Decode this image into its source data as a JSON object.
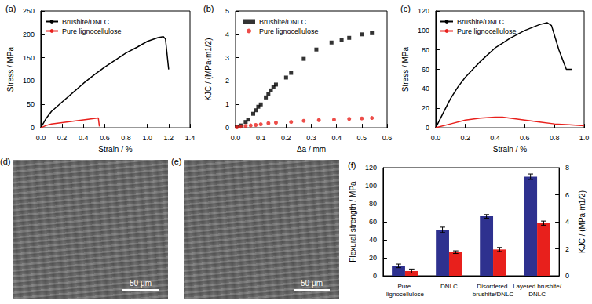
{
  "chart_data": [
    {
      "type": "line",
      "title": "(a)",
      "xlabel": "Strain / %",
      "ylabel": "Stress / MPa",
      "xlim": [
        0,
        1.4
      ],
      "xticks": [
        {
          "value": 0,
          "label": "0.0"
        },
        0.2,
        0.4,
        0.6,
        0.8,
        {
          "value": 1,
          "label": "1.0"
        },
        1.2,
        1.4
      ],
      "ylim": [
        0,
        250
      ],
      "yticks": [
        0,
        50,
        100,
        150,
        200,
        250
      ],
      "legend": "upper left",
      "series": [
        {
          "name": "Brushite/DNLC",
          "color": "#000000",
          "x": [
            0,
            0.05,
            0.1,
            0.2,
            0.3,
            0.4,
            0.5,
            0.6,
            0.7,
            0.8,
            0.9,
            1.0,
            1.1,
            1.15,
            1.17,
            1.2
          ],
          "values": [
            0,
            20,
            35,
            55,
            75,
            95,
            113,
            130,
            145,
            160,
            172,
            185,
            193,
            195,
            190,
            125
          ]
        },
        {
          "name": "Pure lignocellulose",
          "color": "#e8201c",
          "x": [
            0,
            0.05,
            0.1,
            0.2,
            0.3,
            0.4,
            0.5,
            0.54,
            0.55
          ],
          "values": [
            0,
            5,
            8,
            11,
            14,
            17,
            20,
            21,
            3
          ]
        }
      ]
    },
    {
      "type": "scatter",
      "title": "(b)",
      "xlabel": "Δa / mm",
      "ylabel": "KJC / (MPa·m1/2)",
      "xlim": [
        0,
        0.6
      ],
      "xticks": [
        {
          "value": 0,
          "label": "0.0"
        },
        0.1,
        0.2,
        0.3,
        0.4,
        0.5,
        0.6
      ],
      "ylim": [
        0,
        5
      ],
      "yticks": [
        0,
        1,
        2,
        3,
        4,
        5
      ],
      "legend": "upper left",
      "series": [
        {
          "name": "Brushite/DNLC",
          "color": "#000000",
          "marker": "square",
          "x": [
            0.005,
            0.02,
            0.04,
            0.05,
            0.07,
            0.08,
            0.09,
            0.1,
            0.12,
            0.13,
            0.14,
            0.15,
            0.16,
            0.2,
            0.22,
            0.27,
            0.32,
            0.38,
            0.42,
            0.45,
            0.5,
            0.54
          ],
          "values": [
            0.05,
            0.1,
            0.25,
            0.35,
            0.6,
            0.75,
            0.9,
            1.0,
            1.3,
            1.45,
            1.6,
            1.75,
            1.85,
            2.15,
            2.35,
            2.95,
            3.35,
            3.65,
            3.75,
            3.85,
            4.0,
            4.05
          ]
        },
        {
          "name": "Pure lignocellulose",
          "color": "#e8201c",
          "marker": "circle",
          "x": [
            0.005,
            0.02,
            0.04,
            0.06,
            0.08,
            0.1,
            0.13,
            0.16,
            0.22,
            0.27,
            0.33,
            0.39,
            0.45,
            0.5,
            0.54
          ],
          "values": [
            0.02,
            0.05,
            0.08,
            0.1,
            0.12,
            0.15,
            0.2,
            0.22,
            0.25,
            0.3,
            0.33,
            0.35,
            0.38,
            0.4,
            0.42
          ]
        }
      ]
    },
    {
      "type": "line",
      "title": "(c)",
      "xlabel": "Strain / %",
      "ylabel": "Stress / MPa",
      "xlim": [
        0,
        1.0
      ],
      "xticks": [
        {
          "value": 0,
          "label": "0.0"
        },
        0.2,
        0.4,
        0.6,
        0.8,
        {
          "value": 1,
          "label": "1.0"
        }
      ],
      "ylim": [
        0,
        120
      ],
      "yticks": [
        0,
        20,
        40,
        60,
        80,
        100,
        120
      ],
      "legend": "upper left",
      "series": [
        {
          "name": "Brushite/DNLC",
          "color": "#000000",
          "x": [
            0,
            0.05,
            0.1,
            0.15,
            0.2,
            0.25,
            0.3,
            0.35,
            0.4,
            0.45,
            0.5,
            0.55,
            0.6,
            0.65,
            0.7,
            0.75,
            0.78,
            0.8,
            0.83,
            0.86,
            0.88,
            0.9,
            0.92
          ],
          "values": [
            0,
            15,
            30,
            42,
            52,
            60,
            68,
            75,
            82,
            87,
            92,
            96,
            100,
            103,
            106,
            108,
            105,
            95,
            80,
            68,
            60,
            60,
            60
          ]
        },
        {
          "name": "Pure lignocellulose",
          "color": "#e8201c",
          "x": [
            0,
            0.1,
            0.2,
            0.3,
            0.4,
            0.45,
            0.5,
            0.6,
            0.7,
            0.8,
            0.9,
            1.0
          ],
          "values": [
            0,
            4,
            8,
            10,
            11,
            11,
            10,
            8,
            6,
            4,
            3,
            2
          ]
        }
      ]
    },
    {
      "type": "bar",
      "title": "(f)",
      "ylabel": "Flexural strength / MPa",
      "y2label": "KJC / (MPa·m1/2)",
      "categories": [
        "Pure lignocellulose",
        "DNLC",
        "Disordered brushite/DNLC",
        "Layered brushite/DNLC"
      ],
      "ylim": [
        0,
        120
      ],
      "yticks": [
        0,
        20,
        40,
        60,
        80,
        100,
        120
      ],
      "y2lim": [
        0,
        8
      ],
      "y2ticks": [
        0,
        2,
        4,
        6,
        8
      ],
      "series": [
        {
          "color": "#2e318f",
          "values": [
            11,
            51,
            66,
            110
          ],
          "errors": [
            2,
            3,
            2,
            3
          ]
        },
        {
          "color": "#e8201c",
          "axis": "y2",
          "values": [
            0.35,
            1.75,
            1.95,
            3.9
          ],
          "errors": [
            0.15,
            0.1,
            0.15,
            0.15
          ]
        }
      ]
    }
  ],
  "images": [
    {
      "title": "(d)",
      "scale_bar": "50 μm"
    },
    {
      "title": "(e)",
      "scale_bar": "50 μm"
    }
  ]
}
